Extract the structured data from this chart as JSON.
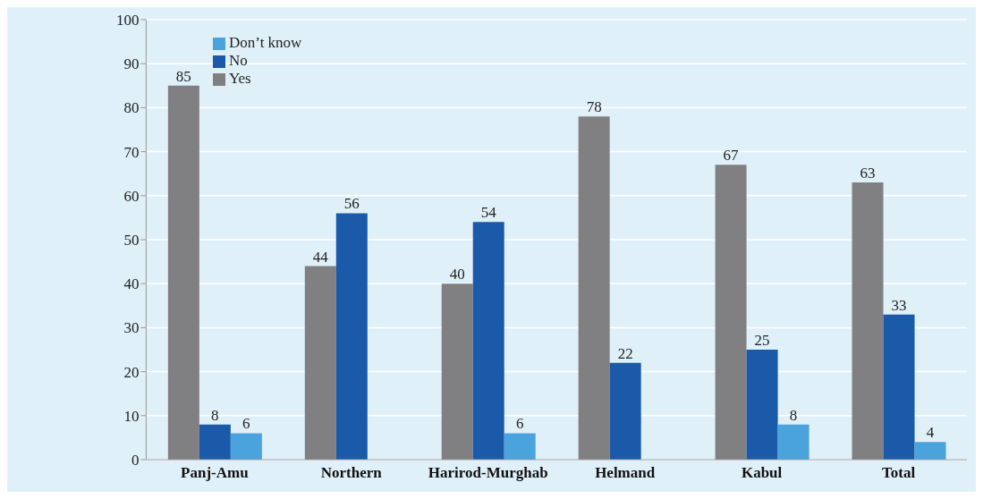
{
  "chart_data": {
    "type": "bar",
    "categories": [
      "Panj-Amu",
      "Northern",
      "Harirod-Murghab",
      "Helmand",
      "Kabul",
      "Total"
    ],
    "series": [
      {
        "name": "Yes",
        "color": "#808083",
        "values": [
          85,
          44,
          40,
          78,
          67,
          63
        ]
      },
      {
        "name": "No",
        "color": "#1a5aa8",
        "values": [
          8,
          56,
          54,
          22,
          25,
          33
        ]
      },
      {
        "name": "Don’t know",
        "color": "#4aa3dc",
        "values": [
          6,
          null,
          6,
          null,
          8,
          4
        ]
      }
    ],
    "ylim": [
      0,
      100
    ],
    "yticks": [
      0,
      10,
      20,
      30,
      40,
      50,
      60,
      70,
      80,
      90,
      100
    ],
    "grid": "y",
    "legend": "top left",
    "data_labels": true
  }
}
